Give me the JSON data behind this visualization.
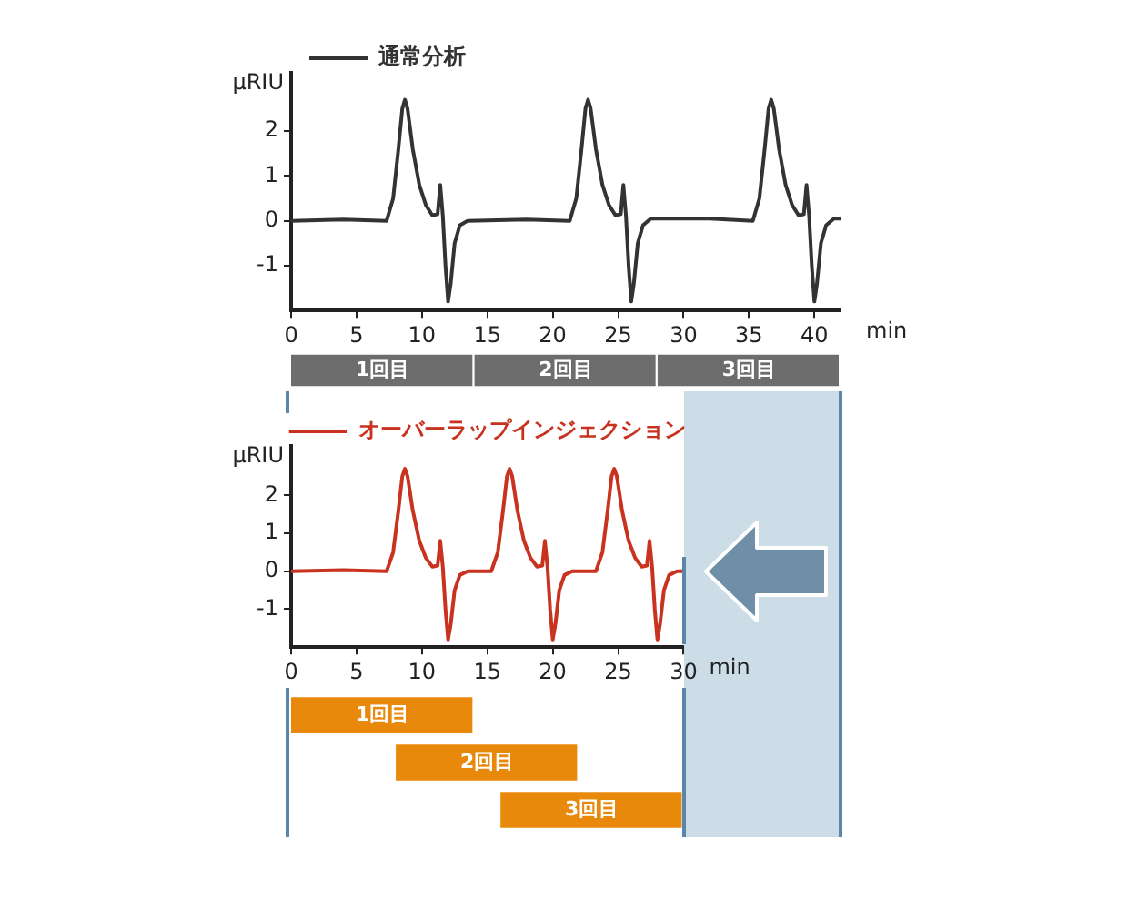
{
  "chart_data": [
    {
      "type": "line",
      "xlabel": "min",
      "ylabel": "µRIU",
      "legend": "top left",
      "grid": false,
      "marker": "none",
      "xlim": [
        0,
        42
      ],
      "xticks": [
        0,
        5,
        10,
        15,
        20,
        25,
        30,
        35,
        40
      ],
      "ylim": [
        -2,
        3.3
      ],
      "yticks": [
        -1,
        0,
        1,
        2
      ],
      "series": [
        {
          "name": "通常分析",
          "color": "#333333",
          "x": [
            0,
            4,
            7.3,
            7.8,
            8.2,
            8.5,
            8.7,
            8.9,
            9.3,
            9.8,
            10.3,
            10.8,
            11.2,
            11.4,
            11.6,
            11.8,
            12.0,
            12.2,
            12.5,
            12.9,
            13.5,
            18,
            21.3,
            21.8,
            22.2,
            22.5,
            22.7,
            22.9,
            23.3,
            23.8,
            24.3,
            24.8,
            25.2,
            25.4,
            25.6,
            25.8,
            26.0,
            26.2,
            26.5,
            26.9,
            27.5,
            32,
            35.3,
            35.8,
            36.2,
            36.5,
            36.7,
            36.9,
            37.3,
            37.8,
            38.3,
            38.8,
            39.2,
            39.4,
            39.6,
            39.8,
            40.0,
            40.2,
            40.5,
            40.9,
            41.5,
            42
          ],
          "values": [
            0,
            0.03,
            0,
            0.5,
            1.6,
            2.5,
            2.7,
            2.5,
            1.6,
            0.8,
            0.35,
            0.12,
            0.15,
            0.8,
            0.1,
            -1.0,
            -1.8,
            -1.4,
            -0.5,
            -0.1,
            0,
            0.03,
            0,
            0.5,
            1.6,
            2.5,
            2.7,
            2.5,
            1.6,
            0.8,
            0.35,
            0.12,
            0.15,
            0.8,
            0.1,
            -1.0,
            -1.8,
            -1.4,
            -0.5,
            -0.1,
            0.05,
            0.05,
            0,
            0.5,
            1.6,
            2.5,
            2.7,
            2.5,
            1.6,
            0.8,
            0.35,
            0.12,
            0.15,
            0.8,
            0.1,
            -1.0,
            -1.8,
            -1.4,
            -0.5,
            -0.1,
            0.05,
            0.05
          ]
        }
      ]
    },
    {
      "type": "bar",
      "orientation": "horizontal",
      "stacked": true,
      "categories": [
        null
      ],
      "xlim": [
        0,
        42
      ],
      "tick_labels": false,
      "series": [
        {
          "name": "1回目",
          "color": "#6d6d6d",
          "values": [
            14
          ]
        },
        {
          "name": "2回目",
          "color": "#6d6d6d",
          "values": [
            14
          ]
        },
        {
          "name": "3回目",
          "color": "#6d6d6d",
          "values": [
            14
          ]
        }
      ]
    },
    {
      "type": "line",
      "xlabel": "min",
      "ylabel": "µRIU",
      "legend": "top",
      "grid": false,
      "marker": "none",
      "xlim": [
        0,
        30
      ],
      "xticks": [
        0,
        5,
        10,
        15,
        20,
        25,
        30
      ],
      "ylim": [
        -2,
        3.3
      ],
      "yticks": [
        -1,
        0,
        1,
        2
      ],
      "series": [
        {
          "name": "オーバーラップインジェクション",
          "color": "#c8321e",
          "x": [
            0,
            4,
            7.3,
            7.8,
            8.2,
            8.5,
            8.7,
            8.9,
            9.3,
            9.8,
            10.3,
            10.8,
            11.2,
            11.4,
            11.6,
            11.8,
            12.0,
            12.2,
            12.5,
            12.9,
            13.5,
            15.3,
            15.8,
            16.2,
            16.5,
            16.7,
            16.9,
            17.3,
            17.8,
            18.3,
            18.8,
            19.2,
            19.4,
            19.6,
            19.8,
            20.0,
            20.2,
            20.5,
            20.9,
            21.5,
            23.3,
            23.8,
            24.2,
            24.5,
            24.7,
            24.9,
            25.3,
            25.8,
            26.3,
            26.8,
            27.2,
            27.4,
            27.6,
            27.8,
            28.0,
            28.2,
            28.5,
            28.9,
            29.5,
            30
          ],
          "values": [
            0,
            0.03,
            0,
            0.5,
            1.6,
            2.5,
            2.7,
            2.5,
            1.6,
            0.8,
            0.35,
            0.12,
            0.15,
            0.8,
            0.1,
            -1.0,
            -1.8,
            -1.4,
            -0.5,
            -0.1,
            0,
            0,
            0.5,
            1.6,
            2.5,
            2.7,
            2.5,
            1.6,
            0.8,
            0.35,
            0.12,
            0.15,
            0.8,
            0.1,
            -1.0,
            -1.8,
            -1.4,
            -0.5,
            -0.1,
            0,
            0,
            0.5,
            1.6,
            2.5,
            2.7,
            2.5,
            1.6,
            0.8,
            0.35,
            0.12,
            0.15,
            0.8,
            0.1,
            -1.0,
            -1.8,
            -1.4,
            -0.5,
            -0.1,
            0,
            0
          ]
        }
      ]
    },
    {
      "type": "bar",
      "orientation": "horizontal",
      "categories": [
        "1回目",
        "2回目",
        "3回目"
      ],
      "xlim": [
        0,
        30
      ],
      "tick_labels": "y",
      "values": [
        14,
        14,
        14
      ],
      "base": [
        0,
        8,
        16
      ],
      "colors": [
        "#e8890c",
        "#e8890c",
        "#e8890c"
      ]
    }
  ]
}
